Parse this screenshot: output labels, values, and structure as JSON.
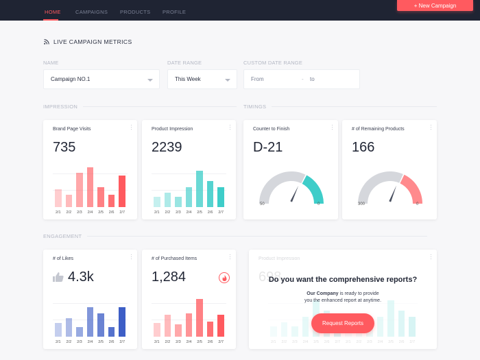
{
  "nav": {
    "tabs": [
      "HOME",
      "CAMPAIGNS",
      "PRODUCTS",
      "PROFILE"
    ],
    "active": "HOME",
    "new_campaign": "+  New Campaign"
  },
  "page": {
    "title": "LIVE CAMPAIGN METRICS",
    "icon": "rss-icon"
  },
  "filters": {
    "name_label": "NAME",
    "name_value": "Campaign NO.1",
    "date_label": "DATE RANGE",
    "date_value": "This Week",
    "custom_label": "CUSTOM DATE RANGE",
    "from_placeholder": "From",
    "dash": "-",
    "to_placeholder": "to"
  },
  "sections": {
    "impression": "IMPRESSION",
    "timings": "TIMINGS",
    "engagement": "ENGAGEMENT"
  },
  "cards": {
    "brand": {
      "title": "Brand Page Visits",
      "value": "735"
    },
    "product": {
      "title": "Product Impression",
      "value": "2239"
    },
    "counter": {
      "title": "Counter to Finish",
      "value": "D-21",
      "min_label": "50",
      "max_label": "0",
      "fraction": 0.42
    },
    "remaining": {
      "title": "# of Remaining Products",
      "value": "166",
      "min_label": "300",
      "max_label": "0",
      "fraction": 0.55
    },
    "likes": {
      "title": "# of Likes",
      "value": "4.3k"
    },
    "purchased": {
      "title": "# of Purchased Items",
      "value": "1,284"
    },
    "promo": {
      "bg_title": "Product Impression",
      "bg_value": "698",
      "heading": "Do you want the comprehensive reports?",
      "text_brand": "Our Company",
      "text_rest": " is ready to provide",
      "text_line2": "you the enhanced report at anytime.",
      "button": "Request Reports"
    }
  },
  "colors": {
    "accent": "#ff5a5f",
    "teal": "#3ecdc9",
    "blue": "#3d5ec6",
    "nav": "#1f2433"
  },
  "chart_data": [
    {
      "type": "bar",
      "name": "brand",
      "categories": [
        "2/1",
        "2/2",
        "2/3",
        "2/4",
        "2/5",
        "2/6",
        "2/7"
      ],
      "values": [
        26,
        18,
        50,
        58,
        29,
        18,
        46
      ],
      "color": "#ff5a5f"
    },
    {
      "type": "bar",
      "name": "product",
      "categories": [
        "2/1",
        "2/2",
        "2/3",
        "2/4",
        "2/5",
        "2/6",
        "2/7"
      ],
      "values": [
        15,
        21,
        15,
        29,
        53,
        38,
        29
      ],
      "color": "#3ecdc9"
    },
    {
      "type": "bar",
      "name": "likes",
      "categories": [
        "2/1",
        "2/2",
        "2/3",
        "2/4",
        "2/5",
        "2/6",
        "2/7"
      ],
      "values": [
        20,
        27,
        14,
        43,
        34,
        14,
        43
      ],
      "color": "#3d5ec6"
    },
    {
      "type": "bar",
      "name": "purchased",
      "categories": [
        "2/1",
        "2/2",
        "2/3",
        "2/4",
        "2/5",
        "2/6",
        "2/7"
      ],
      "values": [
        20,
        32,
        18,
        34,
        55,
        22,
        32
      ],
      "color": "#ff5a5f"
    },
    {
      "type": "bar",
      "name": "promo",
      "categories": [
        "2/1",
        "2/2",
        "2/3",
        "2/4",
        "2/5",
        "2/6",
        "2/7",
        "2/1",
        "2/2",
        "2/3",
        "2/4",
        "2/5",
        "2/6",
        "2/7"
      ],
      "values": [
        15,
        21,
        15,
        29,
        53,
        38,
        29,
        15,
        21,
        15,
        29,
        53,
        38,
        29
      ],
      "color": "#3ecdc9"
    }
  ]
}
